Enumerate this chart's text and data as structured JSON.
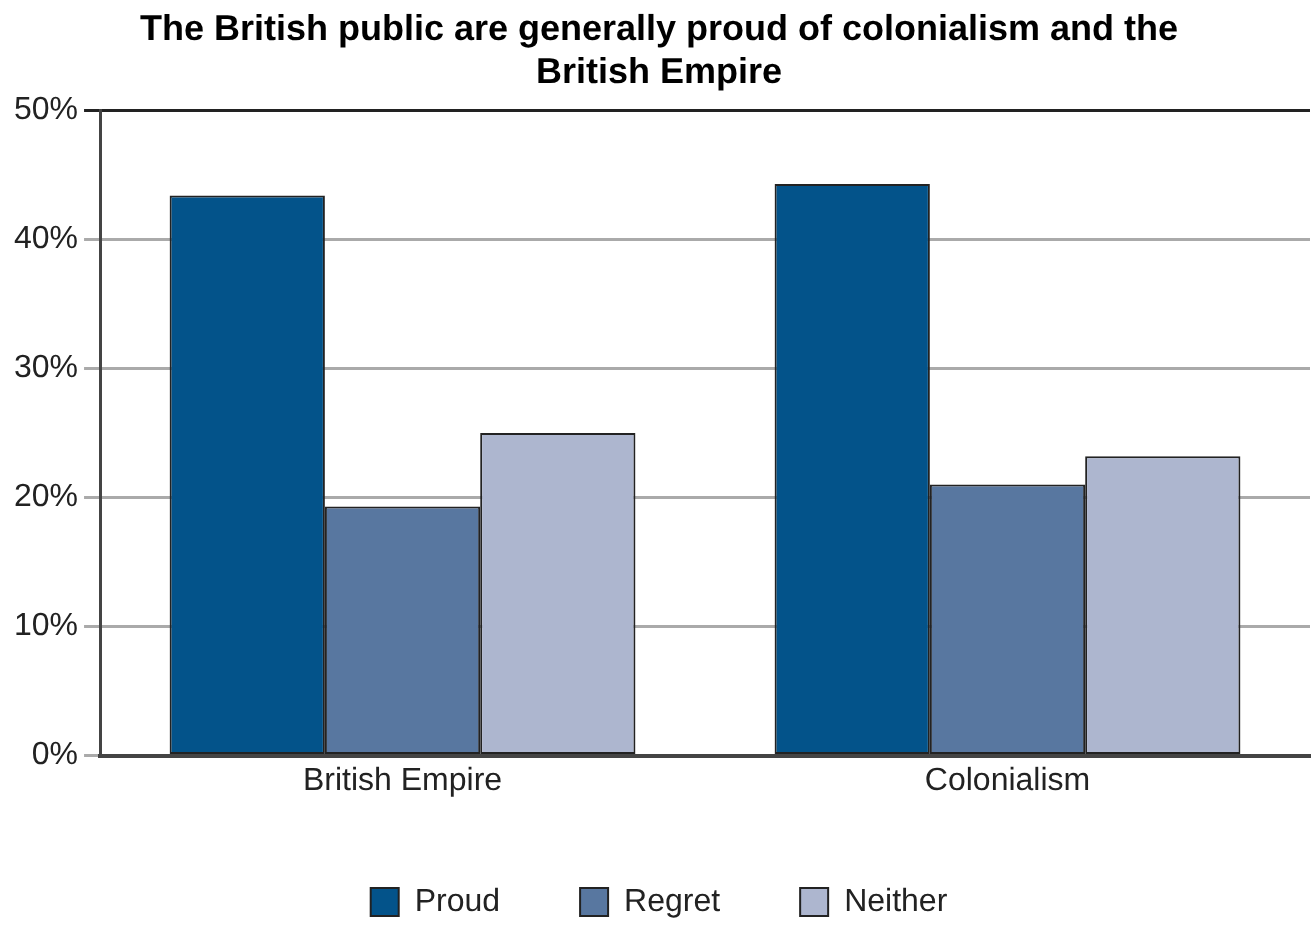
{
  "chart_data": {
    "type": "bar",
    "title": "The British public are generally proud of colonialism and the British Empire",
    "categories": [
      "British Empire",
      "Colonialism"
    ],
    "series": [
      {
        "name": "Proud",
        "color": "#03538a",
        "values": [
          43.4,
          44.3
        ]
      },
      {
        "name": "Regret",
        "color": "#5877a0",
        "values": [
          19.3,
          21.0
        ]
      },
      {
        "name": "Neither",
        "color": "#adb6cf",
        "values": [
          25.0,
          23.2
        ]
      }
    ],
    "ylim": [
      0,
      50
    ],
    "yticks": [
      {
        "value": 0,
        "label": "0%"
      },
      {
        "value": 10,
        "label": "10%"
      },
      {
        "value": 20,
        "label": "20%"
      },
      {
        "value": 30,
        "label": "30%"
      },
      {
        "value": 40,
        "label": "40%"
      },
      {
        "value": 50,
        "label": "50%"
      }
    ],
    "grid": "y",
    "legend": "bottom"
  }
}
